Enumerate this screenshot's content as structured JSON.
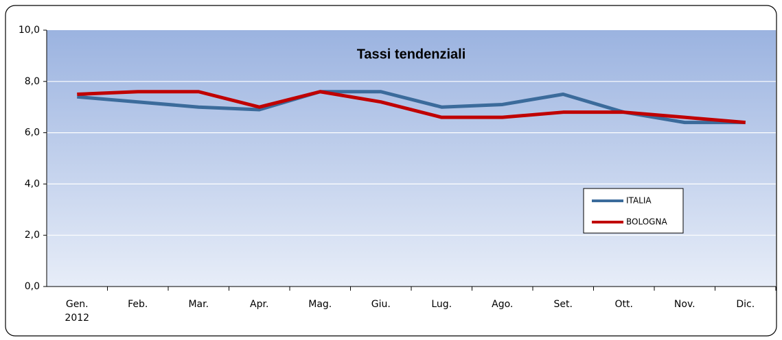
{
  "chart_data": {
    "type": "line",
    "title": "Tassi tendenziali",
    "categories": [
      "Gen.\n2012",
      "Feb.",
      "Mar.",
      "Apr.",
      "Mag.",
      "Giu.",
      "Lug.",
      "Ago.",
      "Set.",
      "Ott.",
      "Nov.",
      "Dic."
    ],
    "series": [
      {
        "name": "ITALIA",
        "color": "#3b6b9b",
        "values": [
          7.4,
          7.2,
          7.0,
          6.9,
          7.6,
          7.6,
          7.0,
          7.1,
          7.5,
          6.8,
          6.4,
          6.4
        ]
      },
      {
        "name": "BOLOGNA",
        "color": "#c00000",
        "values": [
          7.5,
          7.6,
          7.6,
          7.0,
          7.6,
          7.2,
          6.6,
          6.6,
          6.8,
          6.8,
          6.6,
          6.4
        ]
      }
    ],
    "ylim": [
      0,
      10
    ],
    "yticks": [
      {
        "value": 0,
        "label": "0,0"
      },
      {
        "value": 2,
        "label": "2,0"
      },
      {
        "value": 4,
        "label": "4,0"
      },
      {
        "value": 6,
        "label": "6,0"
      },
      {
        "value": 8,
        "label": "8,0"
      },
      {
        "value": 10,
        "label": "10,0"
      }
    ],
    "grid": true,
    "legend": "right"
  }
}
